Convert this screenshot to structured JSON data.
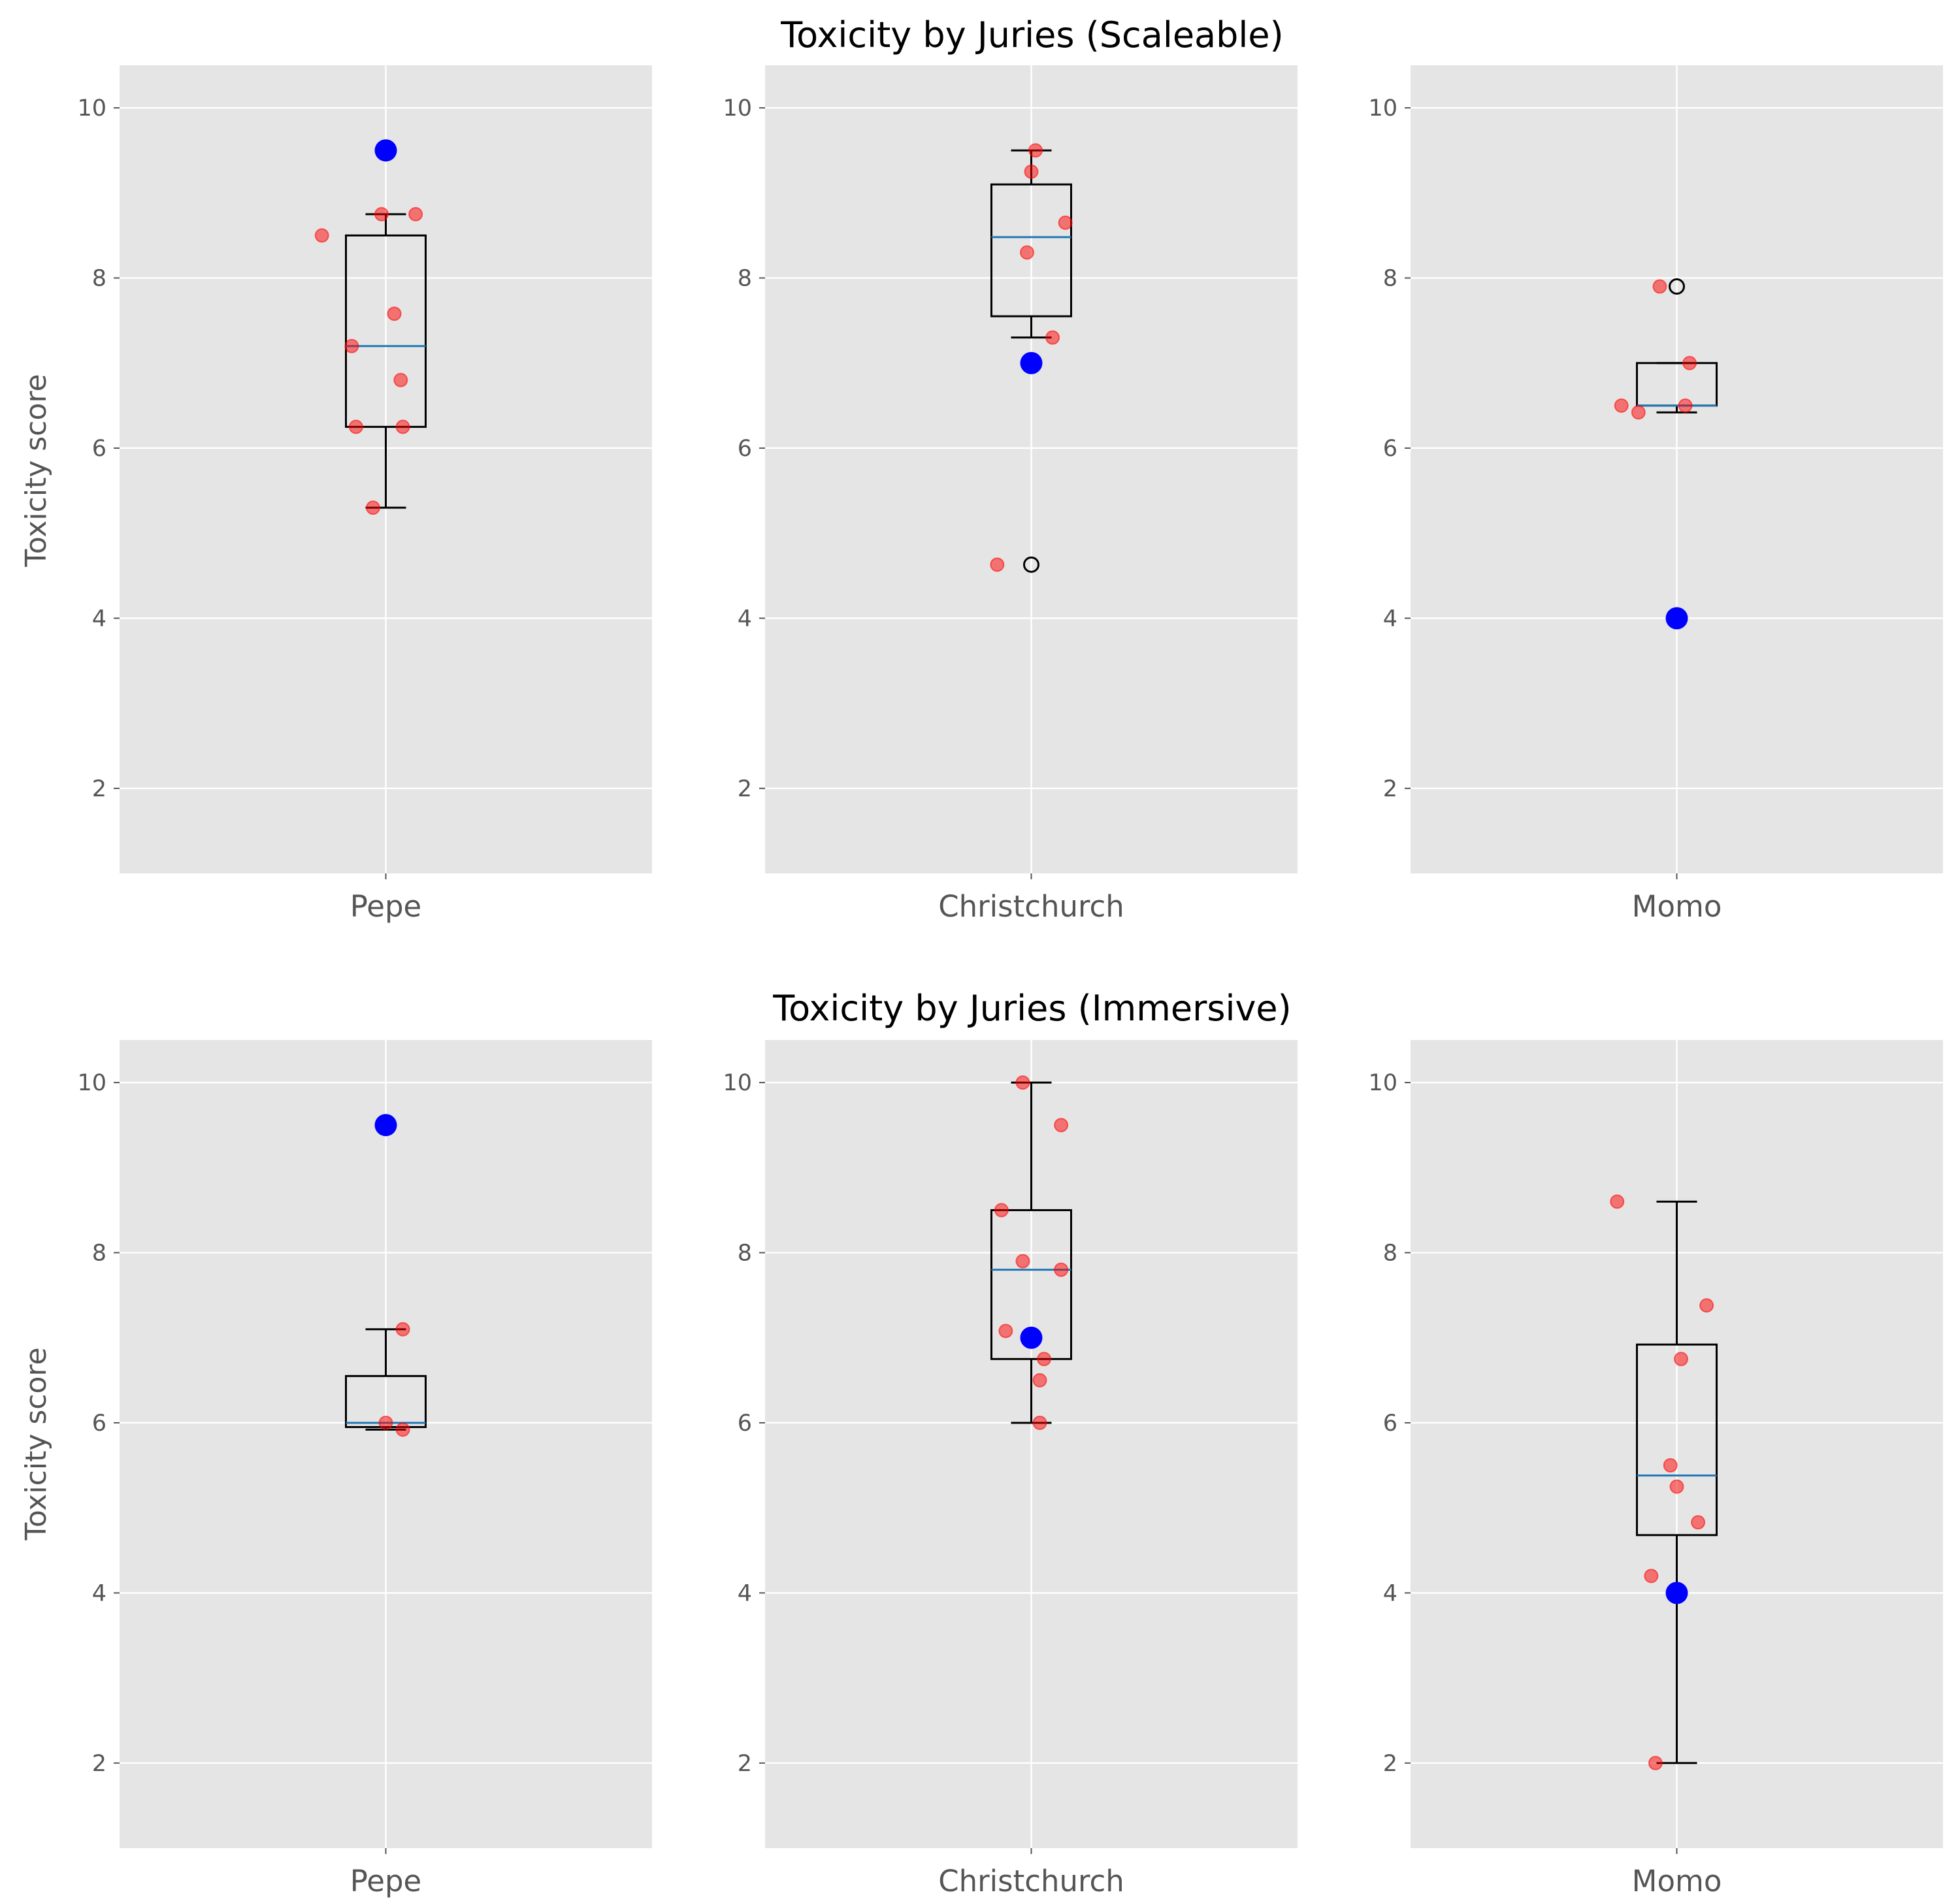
{
  "figure": {
    "titles": [
      "Toxicity by Juries (Scaleable)",
      "Toxicity by Juries (Immersive)"
    ],
    "ylabel": "Toxicity score"
  },
  "colors": {
    "panel_bg": "#e5e5e5",
    "grid": "#ffffff",
    "box": "#000000",
    "median": "#1f77b4",
    "jitter": "#ff0000",
    "highlight": "#0000ff",
    "tick_text": "#555555"
  },
  "chart_data": [
    {
      "type": "box",
      "title": "Toxicity by Juries (Scaleable)",
      "category": "Pepe",
      "ylabel": "Toxicity score",
      "ylim": [
        1,
        10.5
      ],
      "yticks": [
        2,
        4,
        6,
        8,
        10
      ],
      "grid": true,
      "box": {
        "whisker_low": 5.3,
        "q1": 6.25,
        "median": 7.2,
        "q3": 8.5,
        "whisker_high": 8.75
      },
      "outliers": [],
      "highlight": 9.5,
      "jitter_points": [
        [
          -0.15,
          8.5
        ],
        [
          -0.08,
          7.2
        ],
        [
          -0.07,
          6.25
        ],
        [
          -0.03,
          5.3
        ],
        [
          -0.01,
          8.75
        ],
        [
          0.02,
          7.58
        ],
        [
          0.035,
          6.8
        ],
        [
          0.04,
          6.25
        ],
        [
          0.07,
          8.75
        ]
      ]
    },
    {
      "type": "box",
      "title": "Toxicity by Juries (Scaleable)",
      "category": "Christchurch",
      "ylabel": "",
      "ylim": [
        1,
        10.5
      ],
      "yticks": [
        2,
        4,
        6,
        8,
        10
      ],
      "grid": true,
      "box": {
        "whisker_low": 7.3,
        "q1": 7.55,
        "median": 8.48,
        "q3": 9.1,
        "whisker_high": 9.5
      },
      "outliers": [
        4.63
      ],
      "highlight": 7.0,
      "jitter_points": [
        [
          -0.08,
          4.63
        ],
        [
          -0.01,
          8.3
        ],
        [
          0.0,
          9.25
        ],
        [
          0.01,
          9.5
        ],
        [
          0.05,
          7.3
        ],
        [
          0.08,
          8.65
        ]
      ]
    },
    {
      "type": "box",
      "title": "Toxicity by Juries (Scaleable)",
      "category": "Momo",
      "ylabel": "",
      "ylim": [
        1,
        10.5
      ],
      "yticks": [
        2,
        4,
        6,
        8,
        10
      ],
      "grid": true,
      "box": {
        "whisker_low": 6.42,
        "q1": 6.5,
        "median": 6.5,
        "q3": 7.0,
        "whisker_high": 7.0
      },
      "outliers": [
        7.9
      ],
      "highlight": 4.0,
      "jitter_points": [
        [
          -0.13,
          6.5
        ],
        [
          -0.09,
          6.42
        ],
        [
          -0.04,
          7.9
        ],
        [
          0.02,
          6.5
        ],
        [
          0.03,
          7.0
        ]
      ]
    },
    {
      "type": "box",
      "title": "Toxicity by Juries (Immersive)",
      "category": "Pepe",
      "ylabel": "Toxicity score",
      "ylim": [
        1,
        10.5
      ],
      "yticks": [
        2,
        4,
        6,
        8,
        10
      ],
      "grid": true,
      "box": {
        "whisker_low": 5.92,
        "q1": 5.95,
        "median": 6.0,
        "q3": 6.55,
        "whisker_high": 7.1
      },
      "outliers": [],
      "highlight": 9.5,
      "jitter_points": [
        [
          0.0,
          6.0
        ],
        [
          0.04,
          5.92
        ],
        [
          0.04,
          7.1
        ]
      ]
    },
    {
      "type": "box",
      "title": "Toxicity by Juries (Immersive)",
      "category": "Christchurch",
      "ylabel": "",
      "ylim": [
        1,
        10.5
      ],
      "yticks": [
        2,
        4,
        6,
        8,
        10
      ],
      "grid": true,
      "box": {
        "whisker_low": 6.0,
        "q1": 6.75,
        "median": 7.8,
        "q3": 8.5,
        "whisker_high": 10.0
      },
      "outliers": [],
      "highlight": 7.0,
      "jitter_points": [
        [
          -0.07,
          8.5
        ],
        [
          -0.06,
          7.08
        ],
        [
          -0.02,
          10.0
        ],
        [
          -0.02,
          7.9
        ],
        [
          0.02,
          6.5
        ],
        [
          0.02,
          6.0
        ],
        [
          0.03,
          6.75
        ],
        [
          0.07,
          7.8
        ],
        [
          0.07,
          9.5
        ]
      ]
    },
    {
      "type": "box",
      "title": "Toxicity by Juries (Immersive)",
      "category": "Momo",
      "ylabel": "",
      "ylim": [
        1,
        10.5
      ],
      "yticks": [
        2,
        4,
        6,
        8,
        10
      ],
      "grid": true,
      "box": {
        "whisker_low": 2.0,
        "q1": 4.68,
        "median": 5.38,
        "q3": 6.92,
        "whisker_high": 8.6
      },
      "outliers": [],
      "highlight": 4.0,
      "jitter_points": [
        [
          -0.14,
          8.6
        ],
        [
          -0.06,
          4.2
        ],
        [
          -0.05,
          2.0
        ],
        [
          -0.015,
          5.5
        ],
        [
          0.0,
          5.25
        ],
        [
          0.01,
          6.75
        ],
        [
          0.05,
          4.83
        ],
        [
          0.07,
          7.38
        ]
      ]
    }
  ]
}
